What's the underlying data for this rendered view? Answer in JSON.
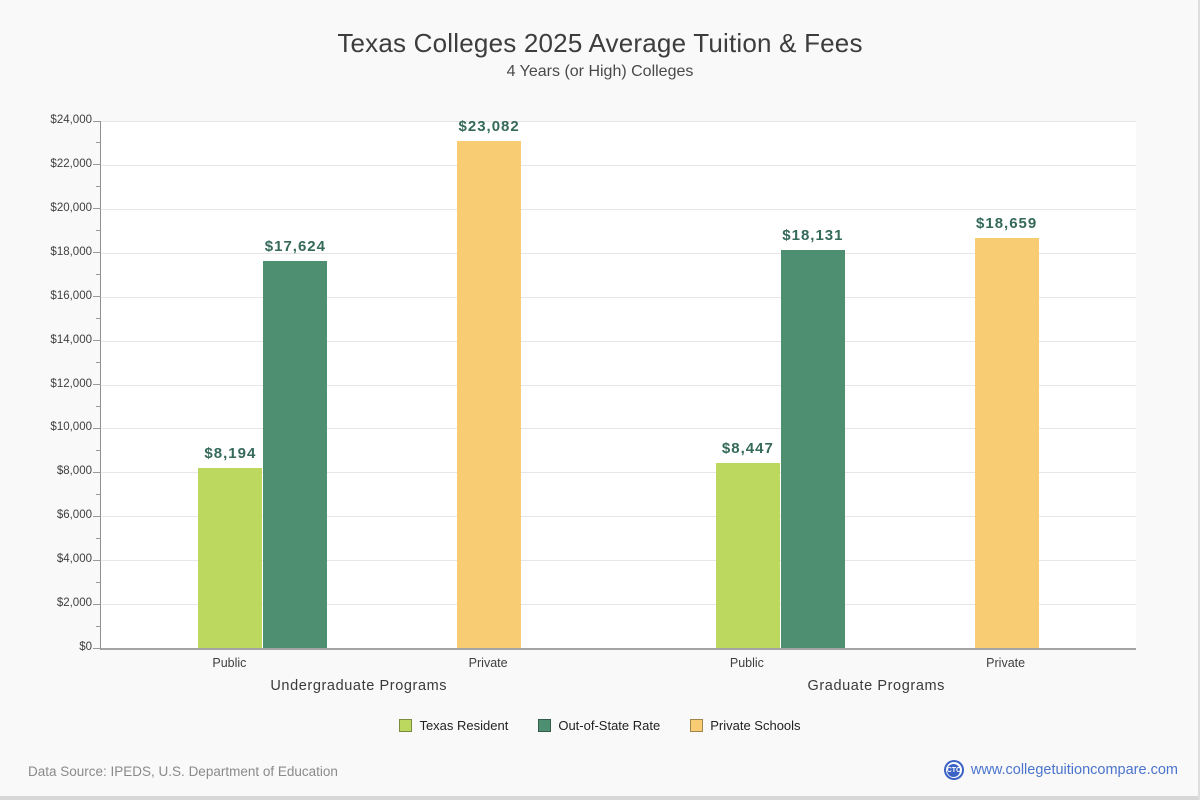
{
  "page": {
    "title": "Texas Colleges 2025 Average Tuition & Fees",
    "subtitle": "4 Years (or High)  Colleges"
  },
  "footer": {
    "data_source": "Data Source: IPEDS, U.S. Department of Education",
    "logo_text": "CTC",
    "website": "www.collegetuitioncompare.com"
  },
  "chart_data": {
    "type": "bar",
    "title": "Texas Colleges 2025 Average Tuition & Fees",
    "subtitle": "4 Years (or High)  Colleges",
    "ylabel": "",
    "xlabel": "",
    "ylim": [
      0,
      24000
    ],
    "y_axis": {
      "min": 0,
      "max": 24000,
      "major_step": 2000,
      "minor_step": 1000,
      "tick_labels": [
        "$0",
        "$2,000",
        "$4,000",
        "$6,000",
        "$8,000",
        "$10,000",
        "$12,000",
        "$14,000",
        "$16,000",
        "$18,000",
        "$20,000",
        "$22,000",
        "$24,000"
      ]
    },
    "grid": true,
    "legend_position": "bottom",
    "series_colors": {
      "Texas Resident": "#bcd85f",
      "Out-of-State Rate": "#4e8f72",
      "Private Schools": "#f7cc73"
    },
    "legend": [
      {
        "label": "Texas Resident",
        "color": "#bcd85f"
      },
      {
        "label": "Out-of-State Rate",
        "color": "#4e8f72"
      },
      {
        "label": "Private Schools",
        "color": "#f7cc73"
      }
    ],
    "groups": [
      {
        "label": "Undergraduate Programs",
        "slots": [
          {
            "tick": "Public",
            "bars": [
              {
                "series": "Texas Resident",
                "value": 8194,
                "label": "$8,194"
              },
              {
                "series": "Out-of-State Rate",
                "value": 17624,
                "label": "$17,624"
              }
            ]
          },
          {
            "tick": "Private",
            "bars": [
              {
                "series": "Private Schools",
                "value": 23082,
                "label": "$23,082"
              }
            ]
          }
        ]
      },
      {
        "label": "Graduate Programs",
        "slots": [
          {
            "tick": "Public",
            "bars": [
              {
                "series": "Texas Resident",
                "value": 8447,
                "label": "$8,447"
              },
              {
                "series": "Out-of-State Rate",
                "value": 18131,
                "label": "$18,131"
              }
            ]
          },
          {
            "tick": "Private",
            "bars": [
              {
                "series": "Private Schools",
                "value": 18659,
                "label": "$18,659"
              }
            ]
          }
        ]
      }
    ]
  }
}
